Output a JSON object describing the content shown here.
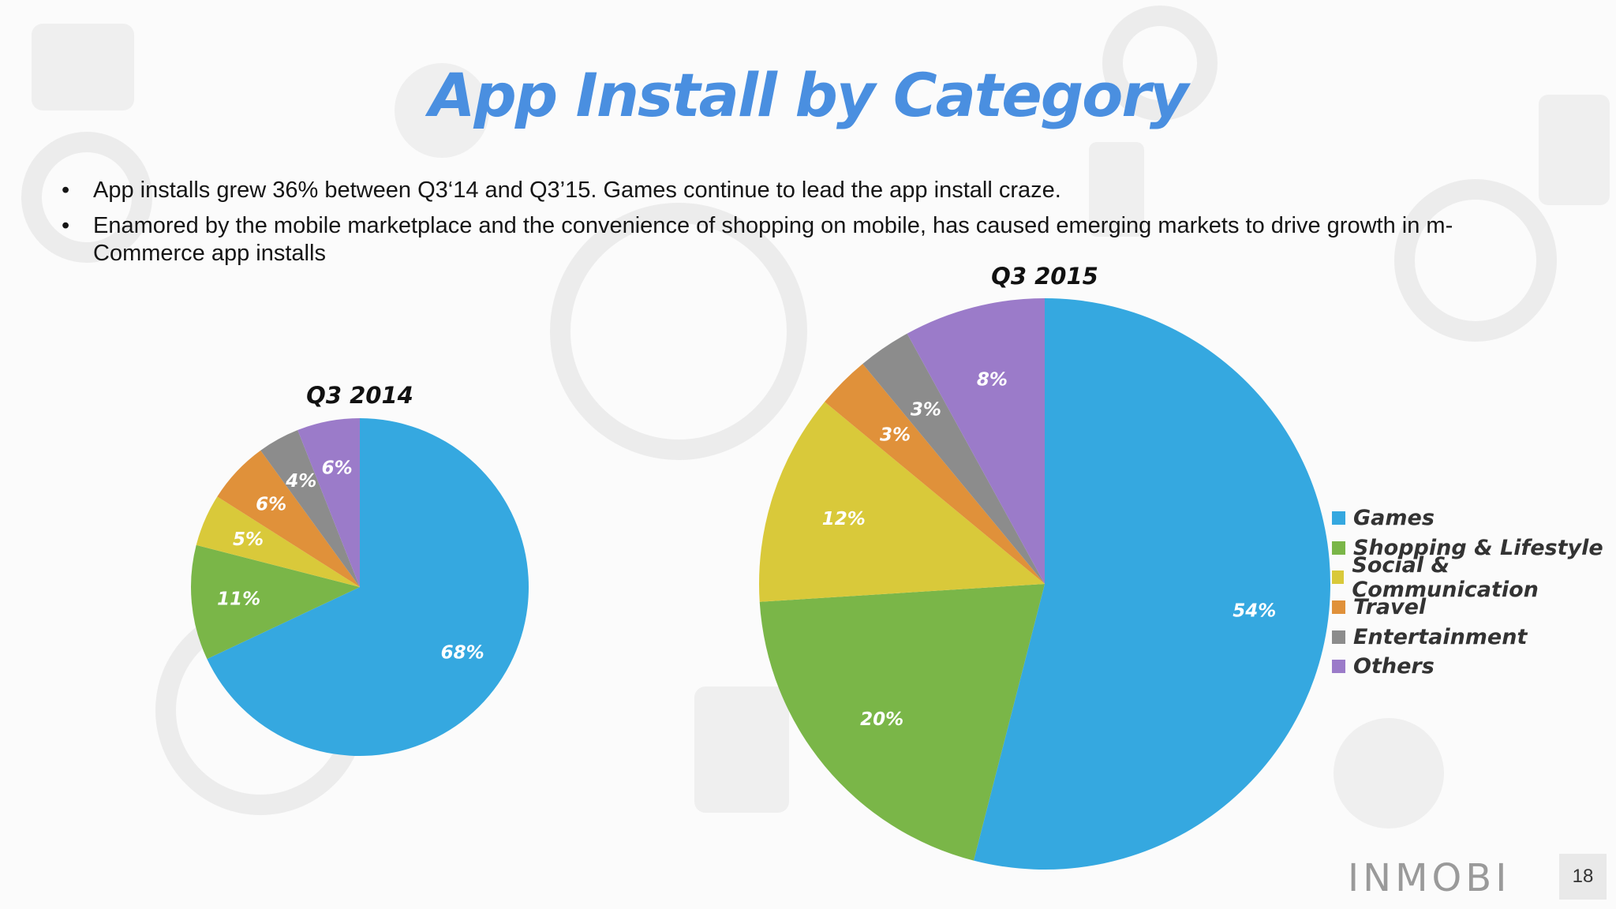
{
  "slide": {
    "title": "App Install by Category",
    "bullets": [
      "App installs grew 36% between Q3‘14 and Q3’15. Games continue to lead the app install craze.",
      "Enamored by the mobile marketplace and the convenience of shopping on mobile, has caused emerging markets to drive growth in m-Commerce app installs"
    ],
    "logo_text": "INMOBI",
    "page_number": "18"
  },
  "legend": {
    "items": [
      {
        "label": "Games",
        "color": "#35a8e0"
      },
      {
        "label": "Shopping & Lifestyle",
        "color": "#7ab648"
      },
      {
        "label": "Social & Communication",
        "color": "#d9c93a"
      },
      {
        "label": "Travel",
        "color": "#e0913a"
      },
      {
        "label": "Entertainment",
        "color": "#8c8c8c"
      },
      {
        "label": "Others",
        "color": "#9b7bc9"
      }
    ]
  },
  "chart_data": [
    {
      "type": "pie",
      "title": "Q3 2014",
      "categories": [
        "Games",
        "Shopping & Lifestyle",
        "Social & Communication",
        "Travel",
        "Entertainment",
        "Others"
      ],
      "values": [
        68,
        11,
        5,
        6,
        4,
        6
      ],
      "labels": [
        "68%",
        "11%",
        "5%",
        "6%",
        "4%",
        "6%"
      ]
    },
    {
      "type": "pie",
      "title": "Q3 2015",
      "categories": [
        "Games",
        "Shopping & Lifestyle",
        "Social & Communication",
        "Travel",
        "Entertainment",
        "Others"
      ],
      "values": [
        54,
        20,
        12,
        3,
        3,
        8
      ],
      "labels": [
        "54%",
        "20%",
        "12%",
        "3%",
        "3%",
        "8%"
      ]
    }
  ]
}
